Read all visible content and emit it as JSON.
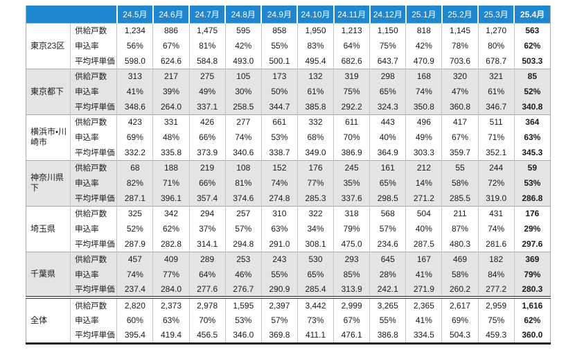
{
  "colors": {
    "header_bg": "#1e87cf",
    "header_text": "#ffffff",
    "shaded_band": "#e4e4e4"
  },
  "table": {
    "corner_label": "",
    "months": [
      "24.5月",
      "24.6月",
      "24.7月",
      "24.8月",
      "24.9月",
      "24.10月",
      "24.11月",
      "24.12月",
      "25.1月",
      "25.2月",
      "25.3月",
      "25.4月"
    ],
    "row_labels": [
      "供給戸数",
      "申込率",
      "平均坪単価"
    ],
    "groups": [
      {
        "name": "東京23区",
        "shaded": false,
        "total_separator": false,
        "rows": [
          [
            "1,234",
            "886",
            "1,475",
            "595",
            "858",
            "1,950",
            "1,213",
            "1,150",
            "818",
            "1,145",
            "1,270",
            "563"
          ],
          [
            "56%",
            "67%",
            "81%",
            "42%",
            "55%",
            "83%",
            "64%",
            "75%",
            "42%",
            "78%",
            "80%",
            "62%"
          ],
          [
            "598.0",
            "624.6",
            "584.8",
            "493.0",
            "500.1",
            "495.4",
            "682.6",
            "643.7",
            "470.9",
            "703.6",
            "678.7",
            "503.3"
          ]
        ]
      },
      {
        "name": "東京都下",
        "shaded": true,
        "total_separator": false,
        "rows": [
          [
            "313",
            "217",
            "275",
            "105",
            "173",
            "132",
            "319",
            "298",
            "168",
            "320",
            "321",
            "85"
          ],
          [
            "41%",
            "39%",
            "49%",
            "30%",
            "50%",
            "61%",
            "75%",
            "65%",
            "74%",
            "47%",
            "61%",
            "52%"
          ],
          [
            "348.6",
            "264.0",
            "337.1",
            "258.5",
            "344.7",
            "385.8",
            "292.2",
            "324.3",
            "350.8",
            "360.8",
            "346.7",
            "340.8"
          ]
        ]
      },
      {
        "name": "横浜市・川崎市",
        "shaded": false,
        "total_separator": false,
        "rows": [
          [
            "423",
            "331",
            "426",
            "277",
            "661",
            "332",
            "611",
            "443",
            "496",
            "417",
            "511",
            "364"
          ],
          [
            "69%",
            "48%",
            "66%",
            "74%",
            "53%",
            "68%",
            "70%",
            "40%",
            "49%",
            "67%",
            "71%",
            "63%"
          ],
          [
            "332.2",
            "335.8",
            "373.9",
            "340.6",
            "338.7",
            "349.0",
            "386.9",
            "364.9",
            "303.3",
            "359.7",
            "352.1",
            "345.3"
          ]
        ]
      },
      {
        "name": "神奈川県下",
        "shaded": true,
        "total_separator": false,
        "rows": [
          [
            "68",
            "188",
            "219",
            "108",
            "152",
            "176",
            "245",
            "161",
            "212",
            "55",
            "244",
            "59"
          ],
          [
            "82%",
            "71%",
            "66%",
            "81%",
            "74%",
            "77%",
            "35%",
            "65%",
            "14%",
            "58%",
            "72%",
            "53%"
          ],
          [
            "287.1",
            "396.1",
            "357.4",
            "374.6",
            "274.8",
            "285.3",
            "337.6",
            "298.5",
            "271.2",
            "285.5",
            "319.0",
            "286.8"
          ]
        ]
      },
      {
        "name": "埼玉県",
        "shaded": false,
        "total_separator": false,
        "rows": [
          [
            "325",
            "342",
            "294",
            "257",
            "310",
            "322",
            "318",
            "568",
            "504",
            "211",
            "431",
            "176"
          ],
          [
            "52%",
            "62%",
            "37%",
            "57%",
            "63%",
            "34%",
            "79%",
            "57%",
            "40%",
            "87%",
            "74%",
            "29%"
          ],
          [
            "287.9",
            "282.8",
            "314.1",
            "294.8",
            "291.0",
            "308.1",
            "475.0",
            "234.6",
            "287.5",
            "480.3",
            "281.6",
            "297.6"
          ]
        ]
      },
      {
        "name": "千葉県",
        "shaded": true,
        "total_separator": false,
        "rows": [
          [
            "457",
            "409",
            "289",
            "253",
            "243",
            "530",
            "293",
            "645",
            "167",
            "469",
            "182",
            "369"
          ],
          [
            "74%",
            "77%",
            "64%",
            "46%",
            "55%",
            "65%",
            "85%",
            "28%",
            "41%",
            "58%",
            "84%",
            "79%"
          ],
          [
            "237.4",
            "284.0",
            "277.6",
            "276.7",
            "290.9",
            "285.4",
            "313.9",
            "242.1",
            "271.9",
            "260.2",
            "277.2",
            "280.3"
          ]
        ]
      },
      {
        "name": "全体",
        "shaded": false,
        "total_separator": true,
        "rows": [
          [
            "2,820",
            "2,373",
            "2,978",
            "1,595",
            "2,397",
            "3,442",
            "2,999",
            "3,265",
            "2,365",
            "2,617",
            "2,959",
            "1,616"
          ],
          [
            "60%",
            "63%",
            "70%",
            "53%",
            "57%",
            "73%",
            "67%",
            "55%",
            "41%",
            "69%",
            "75%",
            "62%"
          ],
          [
            "395.4",
            "419.4",
            "456.5",
            "346.0",
            "369.8",
            "411.1",
            "476.1",
            "386.8",
            "334.5",
            "504.3",
            "459.3",
            "360.0"
          ]
        ]
      }
    ]
  }
}
